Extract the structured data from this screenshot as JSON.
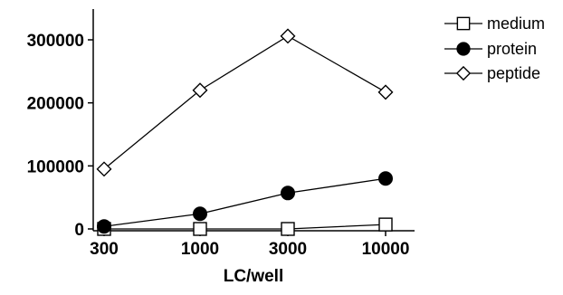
{
  "chart_data": {
    "type": "line",
    "title": "",
    "xlabel": "LC/well",
    "ylabel": "",
    "x_scale": "log",
    "categories": [
      "300",
      "1000",
      "3000",
      "10000"
    ],
    "x": [
      300,
      1000,
      3000,
      10000
    ],
    "ylim": [
      0,
      350000
    ],
    "y_ticks": [
      0,
      100000,
      200000,
      300000
    ],
    "y_tick_labels": [
      "0",
      "100000",
      "200000",
      "300000"
    ],
    "grid": false,
    "legend_position": "top-right",
    "series": [
      {
        "name": "medium",
        "marker": "square-open",
        "values": [
          0,
          0,
          0,
          7000
        ]
      },
      {
        "name": "protein",
        "marker": "circle-filled",
        "values": [
          4000,
          24000,
          57000,
          80000
        ]
      },
      {
        "name": "peptide",
        "marker": "diamond-open",
        "values": [
          95000,
          220000,
          306000,
          217000
        ]
      }
    ]
  }
}
